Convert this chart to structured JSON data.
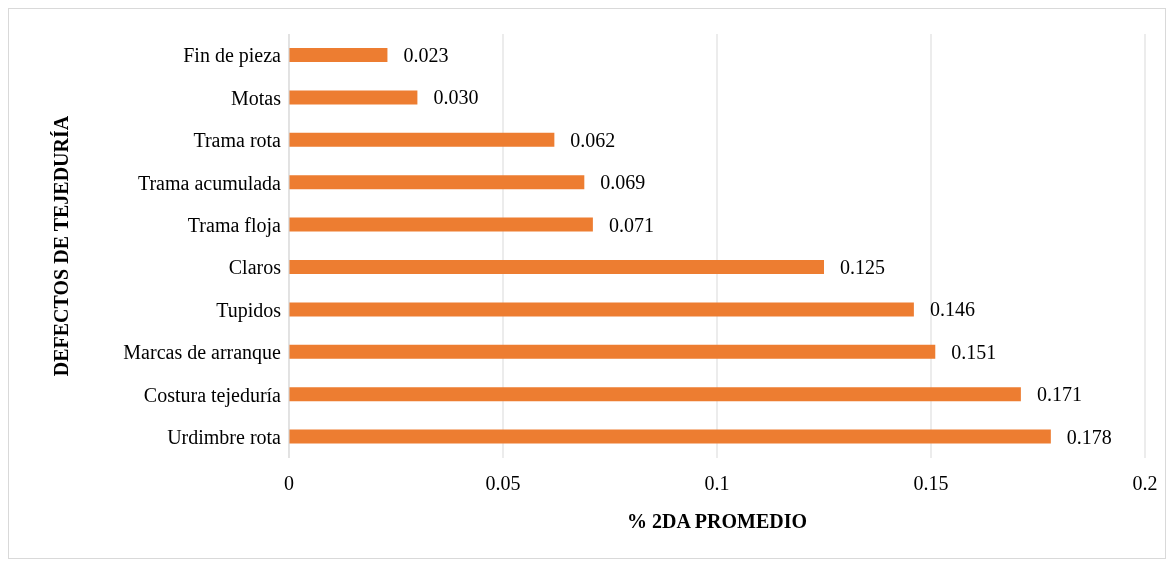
{
  "chart_data": {
    "type": "bar",
    "orientation": "horizontal",
    "xlabel": "% 2DA PROMEDIO",
    "ylabel": "DEFECTOS DE TEJEDURÍA",
    "categories": [
      "Fin de pieza",
      "Motas",
      "Trama rota",
      "Trama acumulada",
      "Trama floja",
      "Claros",
      "Tupidos",
      "Marcas de arranque",
      "Costura tejeduría",
      "Urdimbre rota"
    ],
    "values": [
      0.023,
      0.03,
      0.062,
      0.069,
      0.071,
      0.125,
      0.146,
      0.151,
      0.171,
      0.178
    ],
    "value_labels": [
      "0.023",
      "0.030",
      "0.062",
      "0.069",
      "0.071",
      "0.125",
      "0.146",
      "0.151",
      "0.171",
      "0.178"
    ],
    "color": "#ed7d31",
    "xlim": [
      0,
      0.2
    ],
    "xticks": [
      0,
      0.05,
      0.1,
      0.15,
      0.2
    ],
    "grid": "x"
  }
}
